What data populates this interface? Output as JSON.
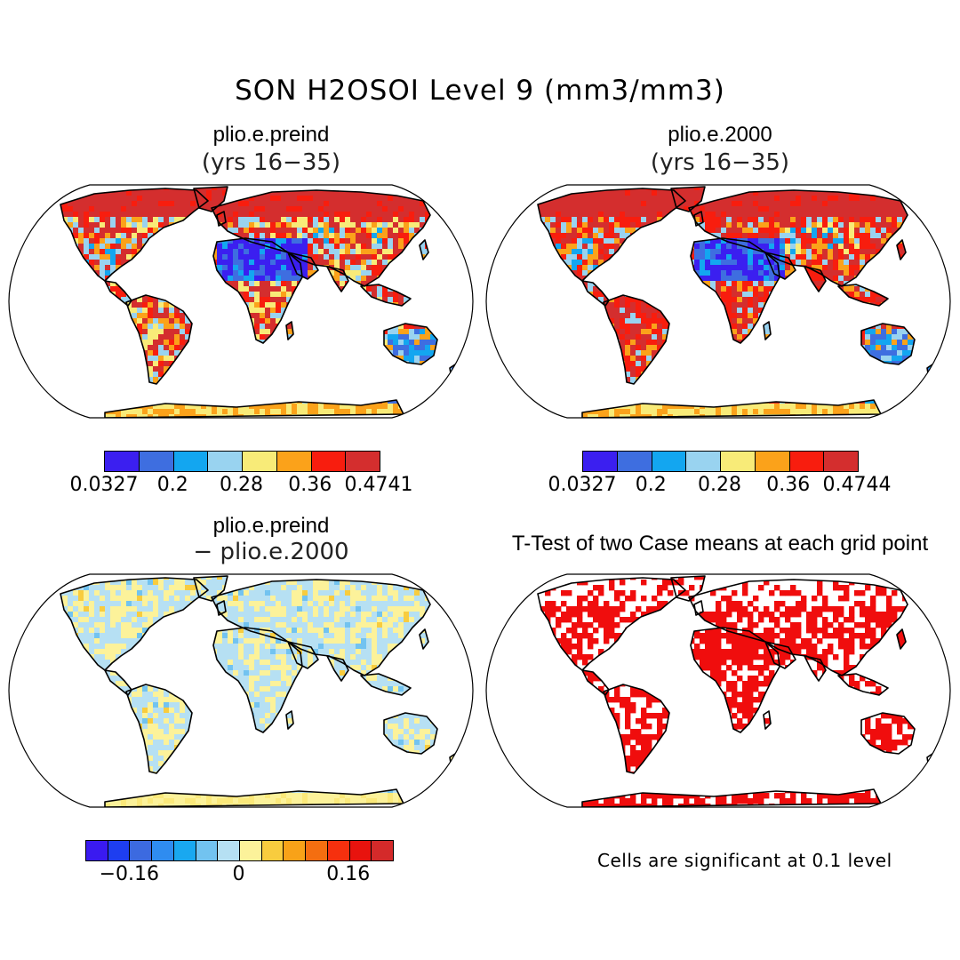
{
  "figure_title": "SON H2OSOI Level 9 (mm3/mm3)",
  "panels": {
    "top_left": {
      "title": "plio.e.preind",
      "subtitle": "(yrs 16−35)",
      "colorbar": {
        "colors": [
          "#3b1ff0",
          "#3e6ee0",
          "#13a6f0",
          "#99d3f0",
          "#f8eb78",
          "#fba21a",
          "#f81d0e",
          "#d42e2e"
        ],
        "labels": [
          "0.0327",
          "0.2",
          "0.28",
          "0.36",
          "0.4741"
        ]
      }
    },
    "top_right": {
      "title": "plio.e.2000",
      "subtitle": "(yrs 16−35)",
      "colorbar": {
        "colors": [
          "#3b1ff0",
          "#3e6ee0",
          "#13a6f0",
          "#99d3f0",
          "#f8eb78",
          "#fba21a",
          "#f81d0e",
          "#d42e2e"
        ],
        "labels": [
          "0.0327",
          "0.2",
          "0.28",
          "0.36",
          "0.4744"
        ]
      }
    },
    "bottom_left": {
      "title": "plio.e.preind",
      "subtitle": "− plio.e.2000",
      "colorbar": {
        "colors": [
          "#3a1af0",
          "#1e3ef0",
          "#3c6ae0",
          "#2f8cf0",
          "#19a8f0",
          "#72c3f0",
          "#b6e0f3",
          "#fcf29a",
          "#f8cc3e",
          "#f8a218",
          "#f46e10",
          "#f6300e",
          "#e8130e",
          "#d42a2a"
        ],
        "labels": [
          "−0.16",
          "0",
          "0.16"
        ]
      }
    },
    "bottom_right": {
      "title": "T-Test of two Case means at each grid point",
      "note": "Cells are significant at 0.1 level"
    }
  }
}
